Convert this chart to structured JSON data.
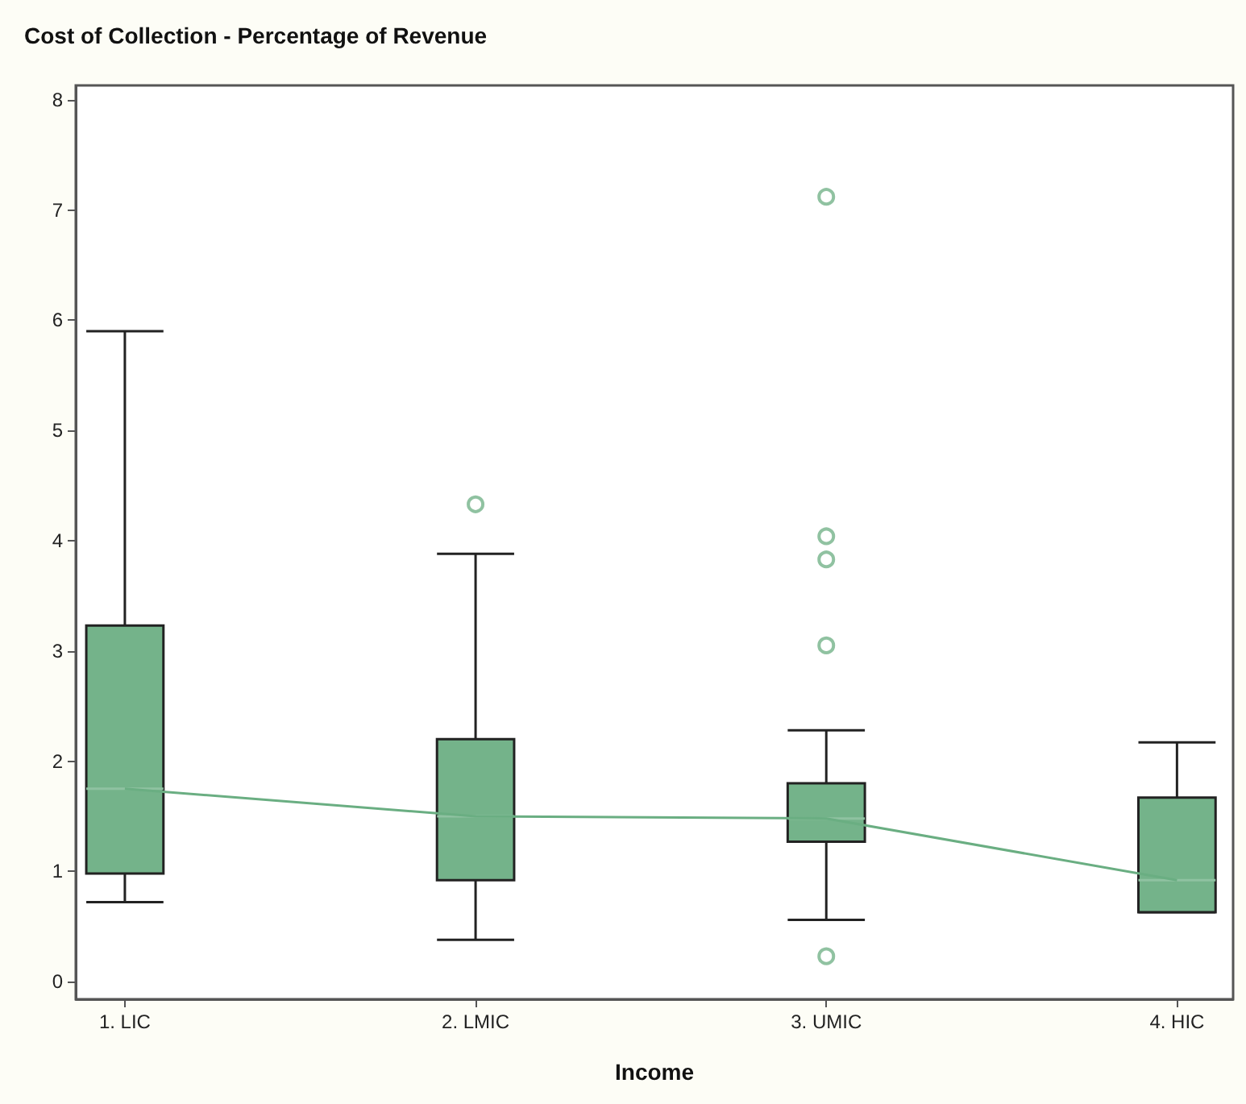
{
  "chart_data": {
    "type": "box",
    "title": "Cost of Collection - Percentage of Revenue",
    "xlabel": "Income",
    "categories": [
      "1. LIC",
      "2. LMIC",
      "3. UMIC",
      "4. HIC"
    ],
    "color": "#74b38a",
    "boxes": [
      {
        "low": 0.72,
        "q1": 0.98,
        "median": 1.75,
        "q3": 3.23,
        "high": 5.9
      },
      {
        "low": 0.38,
        "q1": 0.92,
        "median": 1.5,
        "q3": 2.2,
        "high": 3.88,
        "outliers": [
          4.33
        ]
      },
      {
        "low": 0.56,
        "q1": 1.27,
        "median": 1.48,
        "q3": 1.8,
        "high": 2.28,
        "outliers": [
          7.12,
          4.04,
          3.83,
          3.05,
          0.23
        ]
      },
      {
        "low": 0.63,
        "q1": 0.63,
        "median": 0.92,
        "q3": 1.67,
        "high": 2.17
      }
    ],
    "series": [
      {
        "type": "line",
        "color": "#6aae82",
        "values": [
          1.75,
          1.5,
          1.48,
          0.92
        ]
      }
    ],
    "ylim": [
      -0.16,
      8.13
    ],
    "yticks": [
      0,
      1,
      2,
      3,
      4,
      5,
      6,
      7,
      8
    ]
  }
}
